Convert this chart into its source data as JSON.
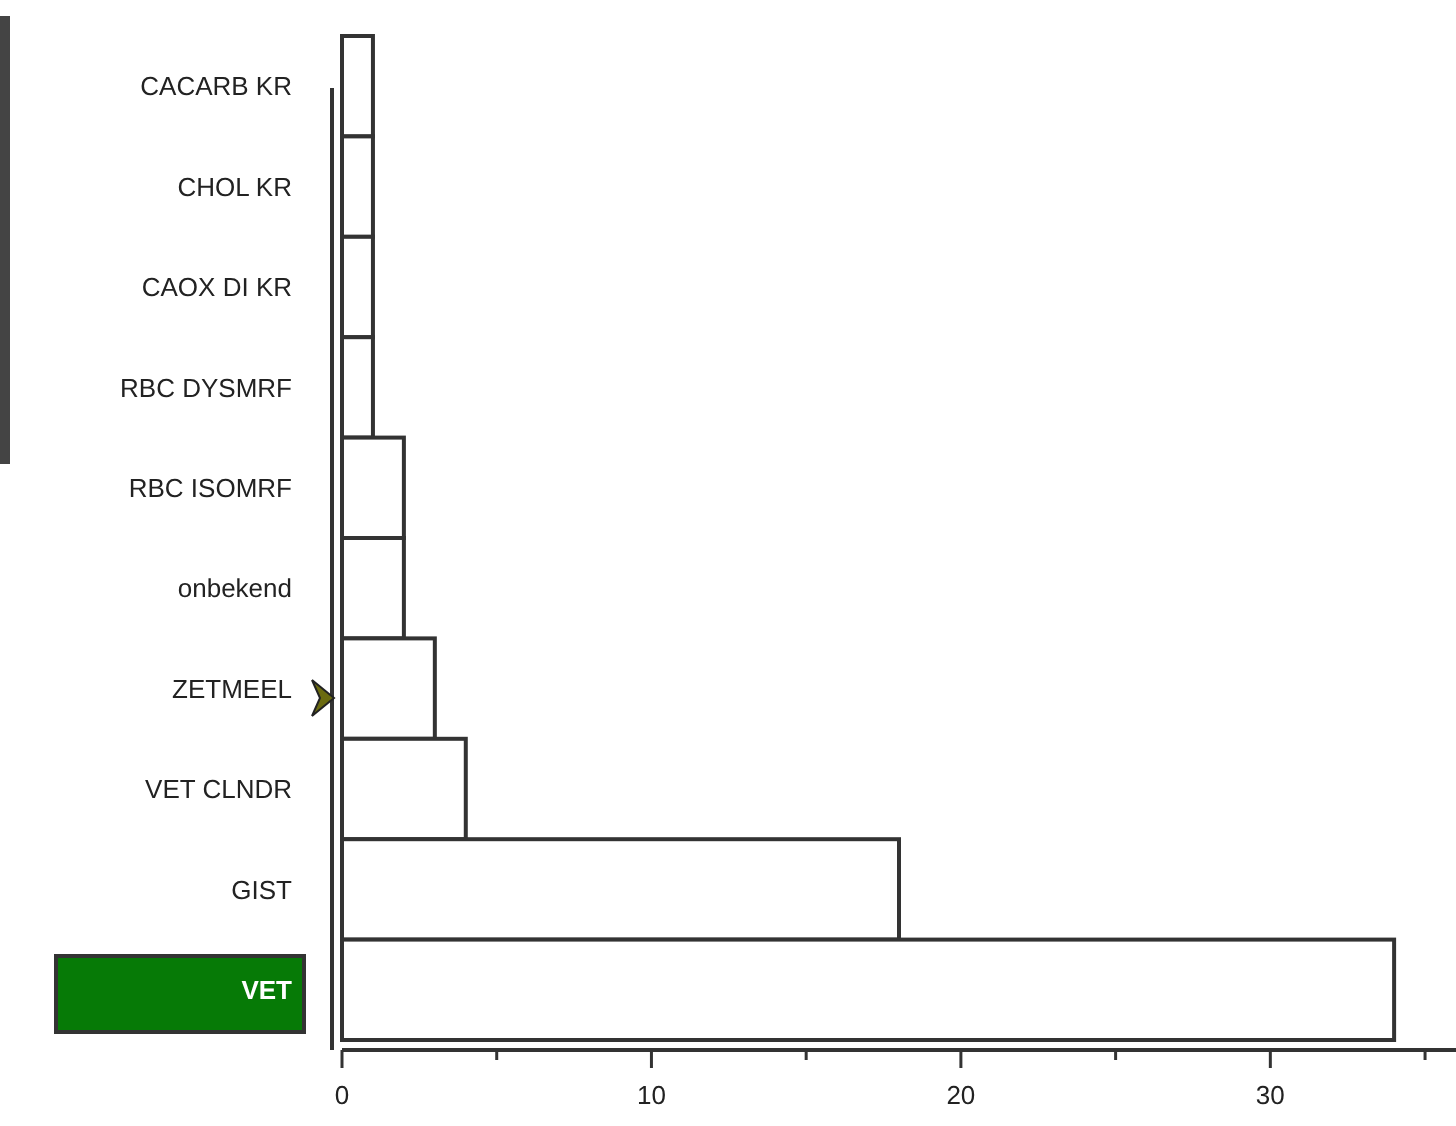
{
  "chart_data": {
    "type": "bar",
    "orientation": "horizontal",
    "categories": [
      "CACARB KR",
      "CHOL KR",
      "CAOX DI KR",
      "RBC DYSMRF",
      "RBC ISOMRF",
      "onbekend",
      "ZETMEEL",
      "VET CLNDR",
      "GIST",
      "VET"
    ],
    "values": [
      1,
      1,
      1,
      1,
      2,
      2,
      3,
      4,
      18,
      34
    ],
    "color": "#ffffff",
    "xlim": [
      0,
      36
    ],
    "xticks": [
      0,
      {
        "value": 5,
        "label": null
      },
      10,
      {
        "value": 15,
        "label": null
      },
      20,
      {
        "value": 25,
        "label": null
      },
      30,
      {
        "value": 35,
        "label": null
      }
    ],
    "grid": false
  }
}
